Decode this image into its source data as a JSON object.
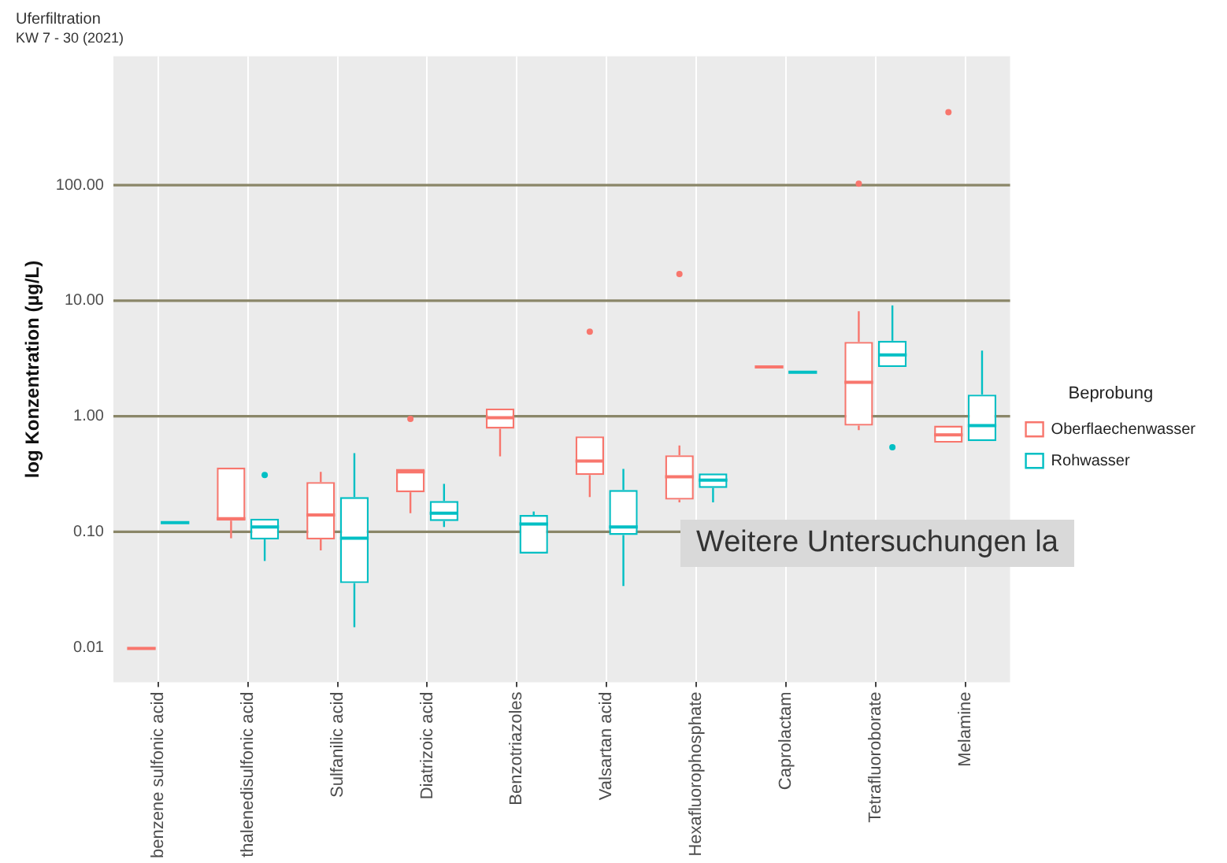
{
  "chart_data": {
    "type": "box",
    "title": "Uferfiltration",
    "subtitle": "KW 7 - 30 (2021)",
    "ylabel": "log Konzentration (µg/L)",
    "legend_title": "Beprobung",
    "legend": "right",
    "grid": "x",
    "log": true,
    "categories": [
      "benzene sulfonic acid",
      "thalenedisulfonic acid",
      "Sulfanilic acid",
      "Diatrizoic acid",
      "Benzotriazoles",
      "Valsartan acid",
      "Hexafluorophosphate",
      "Caprolactam",
      "Tetrafluoroborate",
      "Melamine"
    ],
    "ylim": [
      0.005,
      1300
    ],
    "yticks": [
      {
        "value": 0.01,
        "label": "0.01"
      },
      {
        "value": 0.1,
        "label": "0.10"
      },
      {
        "value": 1,
        "label": "1.00"
      },
      {
        "value": 10,
        "label": "10.00"
      },
      {
        "value": 100,
        "label": "100.00"
      }
    ],
    "ref_lines": [
      {
        "axis": "y",
        "value": 0.1,
        "color": "#8a8668"
      },
      {
        "axis": "y",
        "value": 1,
        "color": "#8a8668"
      },
      {
        "axis": "y",
        "value": 10,
        "color": "#8a8668"
      },
      {
        "axis": "y",
        "value": 100,
        "color": "#8a8668"
      }
    ],
    "annotations": [
      "Weitere Untersuchungen la"
    ],
    "series": [
      {
        "name": "Oberflaechenwasser",
        "color": "#f8766d",
        "boxes": [
          {
            "low": 0.0098,
            "q1": 0.0098,
            "median": 0.0098,
            "q3": 0.0098,
            "high": 0.0098
          },
          {
            "low": 0.088,
            "q1": 0.125,
            "median": 0.13,
            "q3": 0.36,
            "high": 0.36
          },
          {
            "low": 0.069,
            "q1": 0.086,
            "median": 0.14,
            "q3": 0.27,
            "high": 0.33
          },
          {
            "low": 0.145,
            "q1": 0.22,
            "median": 0.33,
            "q3": 0.35,
            "high": 0.35,
            "outliers": [
              0.95
            ]
          },
          {
            "low": 0.45,
            "q1": 0.78,
            "median": 0.97,
            "q3": 1.17,
            "high": 1.17
          },
          {
            "low": 0.2,
            "q1": 0.31,
            "median": 0.41,
            "q3": 0.67,
            "high": 0.67,
            "outliers": [
              5.4
            ]
          },
          {
            "low": 0.18,
            "q1": 0.19,
            "median": 0.3,
            "q3": 0.46,
            "high": 0.56,
            "outliers": [
              17
            ]
          },
          {
            "low": 2.67,
            "q1": 2.67,
            "median": 2.67,
            "q3": 2.67,
            "high": 2.67
          },
          {
            "low": 0.76,
            "q1": 0.83,
            "median": 1.97,
            "q3": 4.4,
            "high": 8.1,
            "outliers": [
              103
            ]
          },
          {
            "low": 0.59,
            "q1": 0.59,
            "median": 0.69,
            "q3": 0.83,
            "high": 0.83,
            "outliers": [
              427
            ]
          }
        ]
      },
      {
        "name": "Rohwasser",
        "color": "#00bfc4",
        "boxes": [
          {
            "low": 0.12,
            "q1": 0.12,
            "median": 0.12,
            "q3": 0.12,
            "high": 0.12
          },
          {
            "low": 0.056,
            "q1": 0.086,
            "median": 0.11,
            "q3": 0.13,
            "high": 0.13,
            "outliers": [
              0.31
            ]
          },
          {
            "low": 0.015,
            "q1": 0.036,
            "median": 0.088,
            "q3": 0.2,
            "high": 0.48
          },
          {
            "low": 0.11,
            "q1": 0.124,
            "median": 0.145,
            "q3": 0.185,
            "high": 0.26
          },
          {
            "low": 0.065,
            "q1": 0.065,
            "median": 0.117,
            "q3": 0.14,
            "high": 0.15
          },
          {
            "low": 0.034,
            "q1": 0.094,
            "median": 0.11,
            "q3": 0.23,
            "high": 0.35
          },
          {
            "low": 0.18,
            "q1": 0.24,
            "median": 0.28,
            "q3": 0.32,
            "high": 0.32
          },
          {
            "low": 2.4,
            "q1": 2.4,
            "median": 2.4,
            "q3": 2.4,
            "high": 2.4
          },
          {
            "low": 2.67,
            "q1": 2.67,
            "median": 3.4,
            "q3": 4.5,
            "high": 9.1,
            "outliers": [
              0.54
            ]
          },
          {
            "low": 0.61,
            "q1": 0.61,
            "median": 0.83,
            "q3": 1.54,
            "high": 3.7
          }
        ]
      }
    ]
  }
}
